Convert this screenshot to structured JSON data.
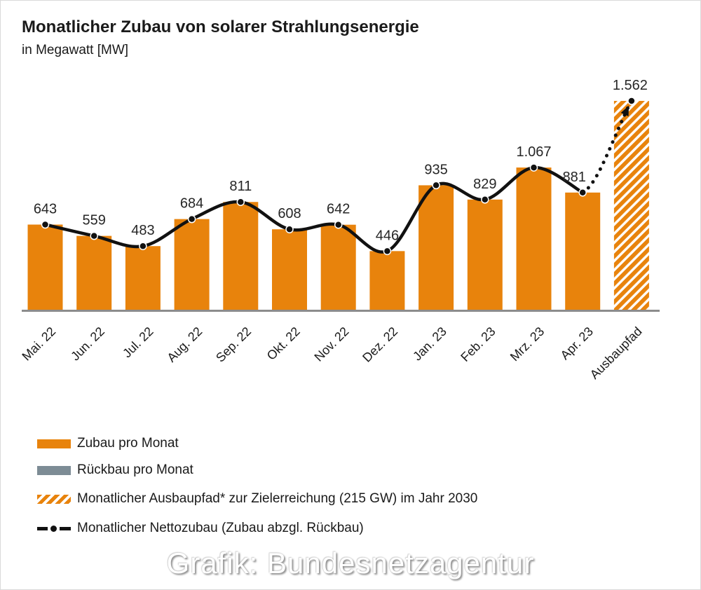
{
  "header": {
    "title": "Monatlicher Zubau von solarer Strahlungsenergie",
    "subtitle": "in Megawatt [MW]"
  },
  "chart_data": {
    "type": "bar",
    "title": "Monatlicher Zubau von solarer Strahlungsenergie",
    "unit_label": "in Megawatt [MW]",
    "categories": [
      "Mai. 22",
      "Jun. 22",
      "Jul. 22",
      "Aug. 22",
      "Sep. 22",
      "Okt. 22",
      "Nov. 22",
      "Dez. 22",
      "Jan. 23",
      "Feb. 23",
      "Mrz. 23",
      "Apr. 23",
      "Ausbaupfad"
    ],
    "series": [
      {
        "name": "Zubau pro Monat",
        "type": "bar",
        "style": "solid",
        "color": "#E8830C",
        "values": [
          643,
          559,
          483,
          684,
          811,
          608,
          642,
          446,
          935,
          829,
          1067,
          881,
          null
        ]
      },
      {
        "name": "Monatlicher Ausbaupfad* zur Zielerreichung (215 GW) im Jahr 2030",
        "type": "bar",
        "style": "hatched",
        "color": "#E8830C",
        "values": [
          null,
          null,
          null,
          null,
          null,
          null,
          null,
          null,
          null,
          null,
          null,
          null,
          1562
        ]
      },
      {
        "name": "Monatlicher Nettozubau (Zubau abzgl. Rückbau)",
        "type": "line",
        "style": "solid-then-dotted",
        "color": "#111111",
        "values": [
          643,
          559,
          483,
          684,
          811,
          608,
          642,
          446,
          935,
          829,
          1067,
          881,
          1562
        ],
        "dotted_from_index": 11,
        "arrow_at_end": true
      }
    ],
    "point_labels": [
      "643",
      "559",
      "483",
      "684",
      "811",
      "608",
      "642",
      "446",
      "935",
      "829",
      "1.067",
      "881",
      "1.562"
    ],
    "ylim": [
      0,
      1650
    ],
    "grid": false,
    "y_axis_visible": false,
    "legend_position": "bottom-left"
  },
  "legend": {
    "items": [
      {
        "label": "Zubau pro Monat",
        "swatch": "bar-orange"
      },
      {
        "label": "Rückbau pro Monat",
        "swatch": "bar-gray"
      },
      {
        "label": "Monatlicher Ausbaupfad* zur Zielerreichung (215 GW) im Jahr 2030",
        "swatch": "bar-hatched"
      },
      {
        "label": "Monatlicher Nettozubau (Zubau abzgl. Rückbau)",
        "swatch": "line-dash-dot"
      }
    ]
  },
  "caption": "Grafik: Bundesnetzagentur",
  "colors": {
    "bar_orange": "#E8830C",
    "rueckbau_gray": "#7D8C95",
    "line_black": "#111111",
    "axis_gray": "#8C8C8C",
    "label_text": "#262626"
  }
}
